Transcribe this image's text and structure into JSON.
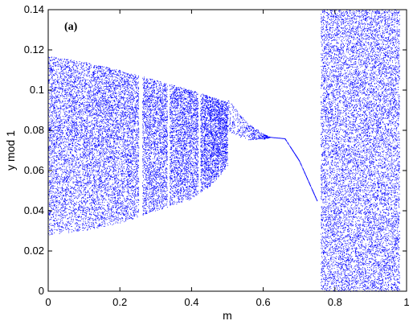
{
  "chart_data": {
    "type": "scatter",
    "title": "",
    "panel_label": "(a)",
    "xlabel": "m",
    "ylabel": "y mod 1",
    "xlim": [
      0,
      1
    ],
    "ylim": [
      0,
      0.14
    ],
    "x_ticks": [
      0,
      0.2,
      0.4,
      0.6,
      0.8,
      1
    ],
    "x_tick_labels": [
      "0",
      "0.2",
      "0.4",
      "0.6",
      "0.8",
      "1"
    ],
    "y_ticks": [
      0,
      0.02,
      0.04,
      0.06,
      0.08,
      0.1,
      0.12,
      0.14
    ],
    "y_tick_labels": [
      "0",
      "0.02",
      "0.04",
      "0.06",
      "0.08",
      "0.1",
      "0.12",
      "0.14"
    ],
    "grid": false,
    "point_color": "#0000ff",
    "axes_color": "#000000",
    "series": [
      {
        "name": "",
        "envelope": [
          {
            "x": 0.0,
            "y_min": 0.028,
            "y_max": 0.117
          },
          {
            "x": 0.1,
            "y_min": 0.03,
            "y_max": 0.114
          },
          {
            "x": 0.2,
            "y_min": 0.034,
            "y_max": 0.11
          },
          {
            "x": 0.3,
            "y_min": 0.04,
            "y_max": 0.105
          },
          {
            "x": 0.4,
            "y_min": 0.046,
            "y_max": 0.1
          },
          {
            "x": 0.45,
            "y_min": 0.052,
            "y_max": 0.097
          },
          {
            "x": 0.5,
            "y_min": 0.062,
            "y_max": 0.094
          }
        ],
        "branches": [
          {
            "x": 0.5,
            "y": 0.088
          },
          {
            "x": 0.55,
            "y": 0.08
          },
          {
            "x": 0.6,
            "y": 0.077
          },
          {
            "x": 0.66,
            "y": 0.076
          },
          {
            "x": 0.7,
            "y": 0.065
          },
          {
            "x": 0.75,
            "y": 0.045
          }
        ],
        "chaotic_band": {
          "x_min": 0.76,
          "x_max": 0.98,
          "y_min": 0,
          "y_max": 0.14
        }
      }
    ]
  }
}
